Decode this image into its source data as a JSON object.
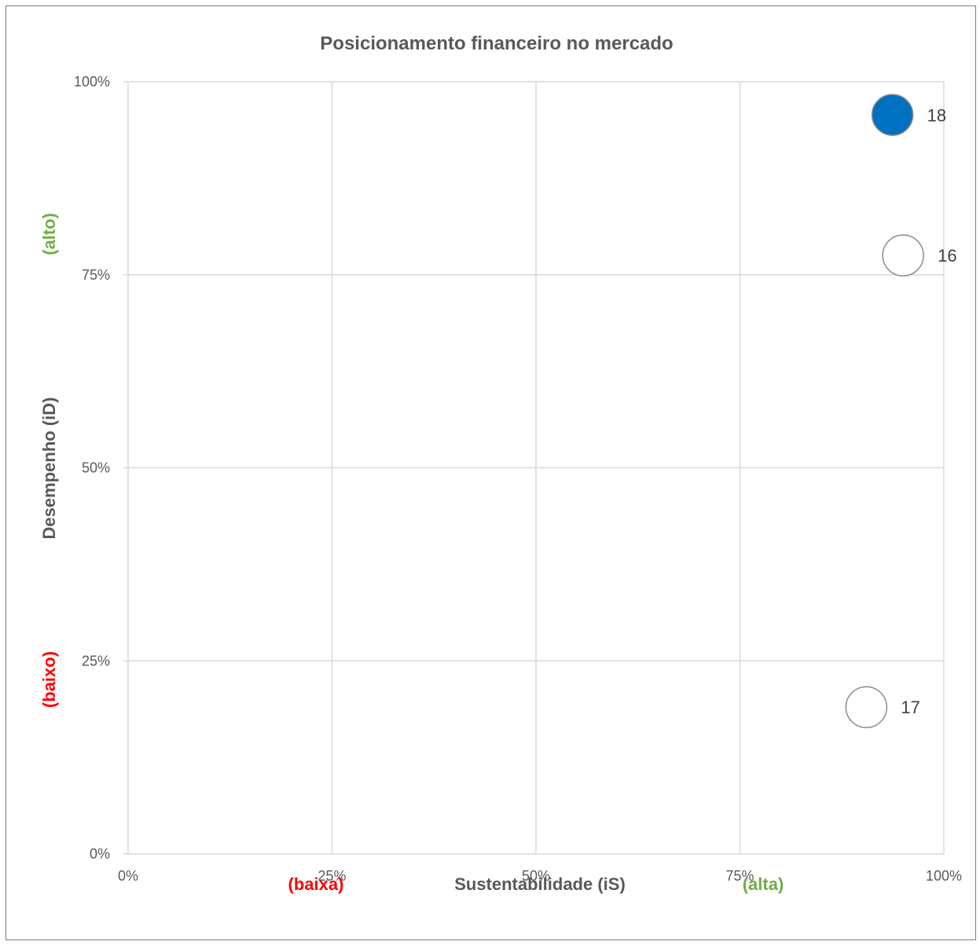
{
  "chart_data": {
    "type": "scatter",
    "title": "Posicionamento financeiro no mercado",
    "xlabel": "Sustentabilidade (iS)",
    "ylabel": "Desempenho (iD)",
    "xlim": [
      0,
      100
    ],
    "ylim": [
      0,
      100
    ],
    "x_ticks": [
      "0%",
      "25%",
      "50%",
      "75%",
      "100%"
    ],
    "y_ticks": [
      "0%",
      "25%",
      "50%",
      "75%",
      "100%"
    ],
    "x_tick_values": [
      0,
      25,
      50,
      75,
      100
    ],
    "y_tick_values": [
      0,
      25,
      50,
      75,
      100
    ],
    "grid": true,
    "x_qualifiers": {
      "low": "(baixa)",
      "high": "(alta)"
    },
    "y_qualifiers": {
      "low": "(baixo)",
      "high": "(alto)"
    },
    "points": [
      {
        "label": "18",
        "x": 93.7,
        "y": 95.7,
        "filled": true
      },
      {
        "label": "16",
        "x": 95.0,
        "y": 77.5,
        "filled": false
      },
      {
        "label": "17",
        "x": 90.5,
        "y": 19.0,
        "filled": false
      }
    ]
  },
  "colors": {
    "low_qualifier": "#ff0000",
    "high_qualifier": "#70ad47",
    "filled_point": "#0070c0",
    "gridline": "#d9d9d9",
    "point_outline": "#8c8c8c"
  }
}
